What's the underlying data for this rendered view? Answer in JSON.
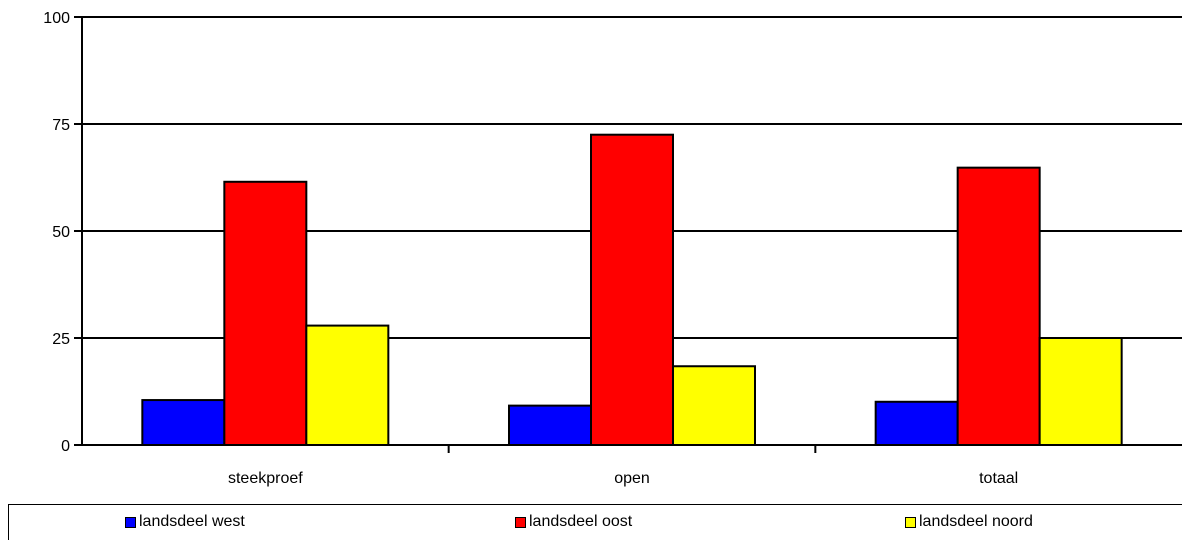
{
  "chart_data": {
    "type": "bar",
    "title": "",
    "xlabel": "",
    "ylabel": "",
    "categories": [
      "steekproef",
      "open",
      "totaal"
    ],
    "series": [
      {
        "name": "landsdeel west",
        "color": "#0000ff",
        "values": [
          10.5,
          9.2,
          10.1
        ]
      },
      {
        "name": "landsdeel oost",
        "color": "#ff0000",
        "values": [
          61.5,
          72.5,
          64.8
        ]
      },
      {
        "name": "landsdeel noord",
        "color": "#ffff00",
        "values": [
          27.9,
          18.4,
          25.0
        ]
      }
    ],
    "ylim": [
      0,
      100
    ],
    "yticks": [
      "0",
      "25",
      "50",
      "75",
      "100"
    ],
    "grid": true,
    "legend_position": "bottom"
  }
}
